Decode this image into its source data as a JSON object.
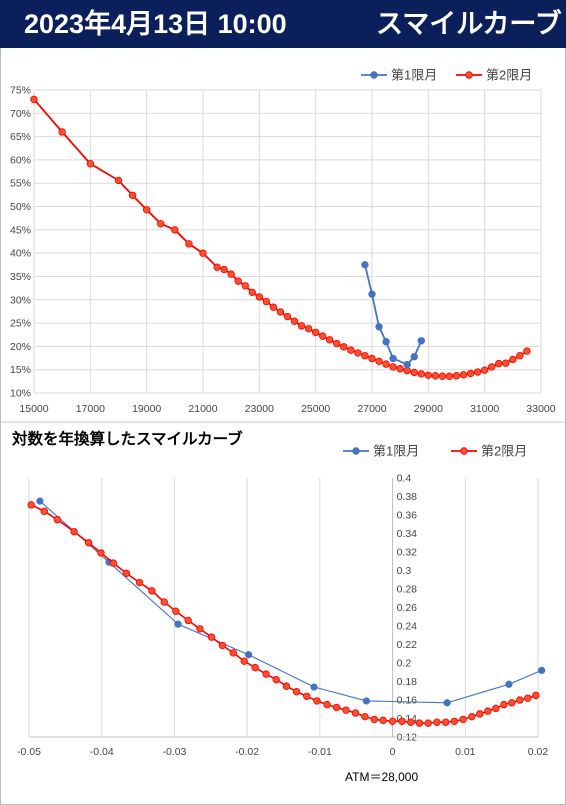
{
  "header": {
    "date": "2023年4月13日 10:00",
    "title": "スマイルカーブ"
  },
  "colors": {
    "header_bg": "#0b1f5a",
    "series1": "#4472c4",
    "series2": "#ff0000",
    "series2_fill": "#f4512c"
  },
  "chart_data": [
    {
      "type": "line",
      "title": "",
      "xlim": [
        15000,
        33000
      ],
      "ylim": [
        10,
        75
      ],
      "x_ticks": [
        "15000",
        "17000",
        "19000",
        "21000",
        "23000",
        "25000",
        "27000",
        "29000",
        "31000",
        "33000"
      ],
      "y_ticks": [
        "10%",
        "15%",
        "20%",
        "25%",
        "30%",
        "35%",
        "40%",
        "45%",
        "50%",
        "55%",
        "60%",
        "65%",
        "70%",
        "75%"
      ],
      "legend_position": "top-right",
      "series": [
        {
          "name": "第1限月",
          "x": [
            26750,
            27000,
            27250,
            27500,
            27750,
            28250,
            28500,
            28750
          ],
          "y": [
            37.5,
            31.2,
            24.2,
            21.0,
            17.4,
            16.1,
            17.8,
            21.2
          ]
        },
        {
          "name": "第2限月",
          "x": [
            15000,
            16000,
            17000,
            18000,
            18500,
            19000,
            19500,
            20000,
            20500,
            21000,
            21500,
            21750,
            22000,
            22250,
            22500,
            22750,
            23000,
            23250,
            23500,
            23750,
            24000,
            24250,
            24500,
            24750,
            25000,
            25250,
            25500,
            25750,
            26000,
            26250,
            26500,
            26750,
            27000,
            27250,
            27500,
            27750,
            28000,
            28250,
            28500,
            28750,
            29000,
            29250,
            29500,
            29750,
            30000,
            30250,
            30500,
            30750,
            31000,
            31250,
            31500,
            31750,
            32000,
            32250,
            32500
          ],
          "y": [
            73.0,
            66.0,
            59.2,
            55.6,
            52.4,
            49.3,
            46.3,
            45.0,
            42.0,
            40.0,
            37.0,
            36.5,
            35.5,
            34.0,
            33.0,
            31.6,
            30.6,
            29.6,
            28.4,
            27.4,
            26.4,
            25.4,
            24.4,
            23.8,
            23.0,
            22.2,
            21.4,
            20.6,
            19.9,
            19.2,
            18.6,
            18.0,
            17.4,
            16.8,
            16.2,
            15.6,
            15.2,
            14.8,
            14.4,
            14.1,
            13.8,
            13.7,
            13.6,
            13.6,
            13.7,
            13.9,
            14.2,
            14.5,
            14.9,
            15.6,
            16.3,
            16.4,
            17.2,
            18.0,
            19.0
          ]
        }
      ]
    },
    {
      "type": "line",
      "title": "対数を年換算したスマイルカーブ",
      "xlim": [
        -0.05,
        0.02
      ],
      "ylim": [
        0.12,
        0.4
      ],
      "x_ticks": [
        "-0.05",
        "-0.04",
        "-0.03",
        "-0.02",
        "-0.01",
        "0",
        "0.01",
        "0.02"
      ],
      "y_ticks": [
        "0.4",
        "0.38",
        "0.36",
        "0.34",
        "0.32",
        "0.3",
        "0.28",
        "0.26",
        "0.24",
        "0.22",
        "0.2",
        "0.18",
        "0.16",
        "0.14",
        "0.12"
      ],
      "legend_position": "top-right",
      "annotation": "ATM＝28,000",
      "series": [
        {
          "name": "第1限月",
          "x": [
            -0.0485,
            -0.039,
            -0.0295,
            -0.0198,
            -0.0108,
            -0.0036,
            0.0075,
            0.016,
            0.0205
          ],
          "y": [
            0.375,
            0.309,
            0.242,
            0.209,
            0.174,
            0.159,
            0.157,
            0.177,
            0.192
          ]
        },
        {
          "name": "第2限月",
          "x": [
            -0.0497,
            -0.0479,
            -0.0461,
            -0.0438,
            -0.0418,
            -0.0401,
            -0.0384,
            -0.0366,
            -0.0348,
            -0.0331,
            -0.0314,
            -0.0298,
            -0.0281,
            -0.0265,
            -0.0249,
            -0.0234,
            -0.0219,
            -0.0204,
            -0.0189,
            -0.0174,
            -0.016,
            -0.0146,
            -0.0132,
            -0.0118,
            -0.0104,
            -0.009,
            -0.0077,
            -0.0064,
            -0.0051,
            -0.0038,
            -0.0025,
            -0.0013,
            0.0,
            0.0013,
            0.0025,
            0.0037,
            0.0049,
            0.0061,
            0.0073,
            0.0085,
            0.0097,
            0.0109,
            0.012,
            0.0131,
            0.0142,
            0.0153,
            0.0164,
            0.0175,
            0.0186,
            0.0197
          ],
          "y": [
            0.371,
            0.364,
            0.355,
            0.342,
            0.33,
            0.319,
            0.308,
            0.297,
            0.287,
            0.278,
            0.266,
            0.256,
            0.246,
            0.237,
            0.228,
            0.219,
            0.211,
            0.202,
            0.195,
            0.188,
            0.182,
            0.175,
            0.169,
            0.164,
            0.159,
            0.155,
            0.152,
            0.149,
            0.146,
            0.142,
            0.139,
            0.138,
            0.137,
            0.137,
            0.136,
            0.135,
            0.135,
            0.136,
            0.136,
            0.137,
            0.139,
            0.142,
            0.145,
            0.148,
            0.151,
            0.155,
            0.157,
            0.16,
            0.162,
            0.165
          ]
        }
      ]
    }
  ]
}
